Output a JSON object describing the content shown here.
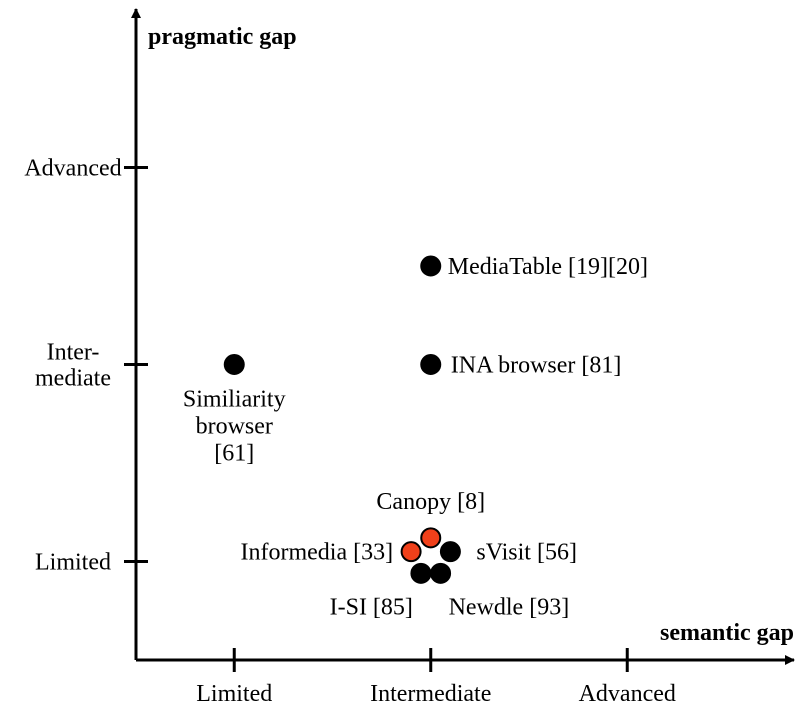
{
  "chart_data": {
    "type": "scatter",
    "title": "",
    "xlabel": "semantic gap",
    "ylabel": "pragmatic gap",
    "x_ticks": [
      "Limited",
      "Intermediate",
      "Advanced"
    ],
    "y_ticks": [
      [
        "Limited"
      ],
      [
        "Inter-",
        "mediate"
      ],
      [
        "Advanced"
      ]
    ],
    "xlim": [
      0,
      4
    ],
    "ylim": [
      0,
      4
    ],
    "grid": false,
    "legend": "none",
    "points": [
      {
        "x": 1.0,
        "y": 2.0,
        "label": [
          "Similiarity",
          "browser",
          "[61]"
        ],
        "color": "#000000"
      },
      {
        "x": 2.0,
        "y": 2.0,
        "label": [
          "INA browser [81]"
        ],
        "color": "#000000"
      },
      {
        "x": 2.0,
        "y": 2.5,
        "label": [
          "MediaTable [19][20]"
        ],
        "color": "#000000"
      },
      {
        "x": 2.0,
        "y": 1.12,
        "label": [
          "Canopy [8]"
        ],
        "color": "#f0401a"
      },
      {
        "x": 1.9,
        "y": 1.05,
        "label": [
          "Informedia [33]"
        ],
        "color": "#f0401a"
      },
      {
        "x": 2.1,
        "y": 1.05,
        "label": [
          "sVisit [56]"
        ],
        "color": "#000000"
      },
      {
        "x": 1.95,
        "y": 0.94,
        "label": [
          "I-SI [85]"
        ],
        "color": "#000000"
      },
      {
        "x": 2.05,
        "y": 0.94,
        "label": [
          "Newdle [93]"
        ],
        "color": "#000000"
      }
    ]
  }
}
